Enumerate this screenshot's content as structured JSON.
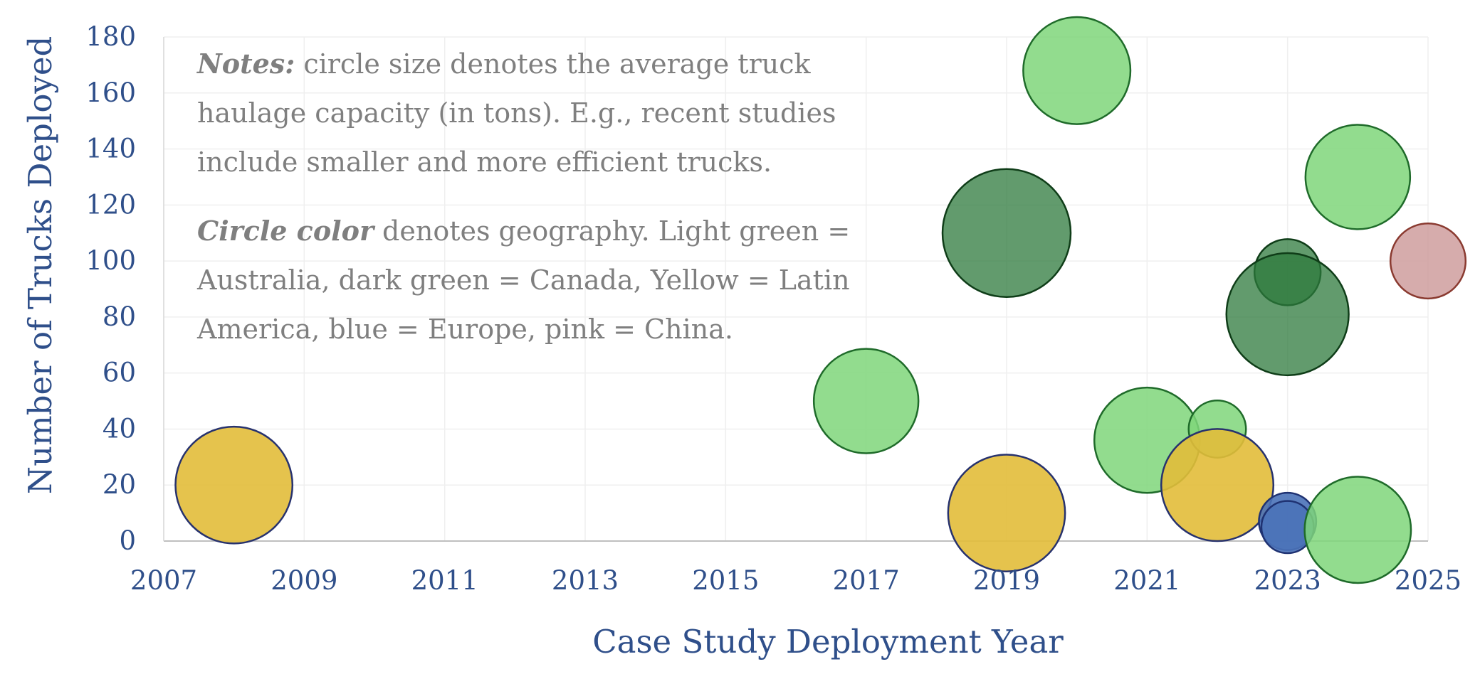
{
  "chart_data": {
    "type": "bubble",
    "xlabel": "Case Study Deployment Year",
    "ylabel": "Number of Trucks Deployed",
    "xlim": [
      2007,
      2025
    ],
    "ylim": [
      0,
      180
    ],
    "xticks": [
      "2007",
      "2009",
      "2011",
      "2013",
      "2015",
      "2017",
      "2019",
      "2021",
      "2023",
      "2025"
    ],
    "yticks": [
      "0",
      "20",
      "40",
      "60",
      "80",
      "100",
      "120",
      "140",
      "160",
      "180"
    ],
    "grid": true,
    "size_meaning": "average truck haulage capacity (tons)",
    "colors": {
      "australia": "#7fd67a",
      "canada": "#2e7a3c",
      "latin_america": "#e2bc3a",
      "europe": "#4a72b8",
      "china": "#cf9e9e"
    },
    "points": [
      {
        "x": 2008,
        "y": 20,
        "size": 75,
        "group": "latin_america"
      },
      {
        "x": 2017,
        "y": 50,
        "size": 60,
        "group": "australia"
      },
      {
        "x": 2019,
        "y": 110,
        "size": 90,
        "group": "canada"
      },
      {
        "x": 2019,
        "y": 10,
        "size": 75,
        "group": "latin_america"
      },
      {
        "x": 2020,
        "y": 168,
        "size": 63,
        "group": "australia"
      },
      {
        "x": 2021,
        "y": 36,
        "size": 61,
        "group": "australia"
      },
      {
        "x": 2022,
        "y": 40,
        "size": 18,
        "group": "australia"
      },
      {
        "x": 2022,
        "y": 20,
        "size": 69,
        "group": "latin_america"
      },
      {
        "x": 2023,
        "y": 96,
        "size": 24,
        "group": "canada"
      },
      {
        "x": 2023,
        "y": 81,
        "size": 82,
        "group": "canada"
      },
      {
        "x": 2023,
        "y": 7,
        "size": 18,
        "group": "europe"
      },
      {
        "x": 2023,
        "y": 5,
        "size": 15,
        "group": "europe"
      },
      {
        "x": 2024,
        "y": 130,
        "size": 60,
        "group": "australia"
      },
      {
        "x": 2024,
        "y": 4,
        "size": 62,
        "group": "australia"
      },
      {
        "x": 2025,
        "y": 100,
        "size": 31,
        "group": "china"
      }
    ]
  },
  "notes": {
    "notes_label": "Notes:",
    "notes_text": " circle size denotes the average truck haulage capacity (in tons). E.g., recent studies include smaller and more efficient trucks.",
    "color_label": "Circle color",
    "color_text": " denotes geography. Light green = Australia, dark green = Canada, Yellow = Latin America, blue = Europe, pink = China."
  }
}
